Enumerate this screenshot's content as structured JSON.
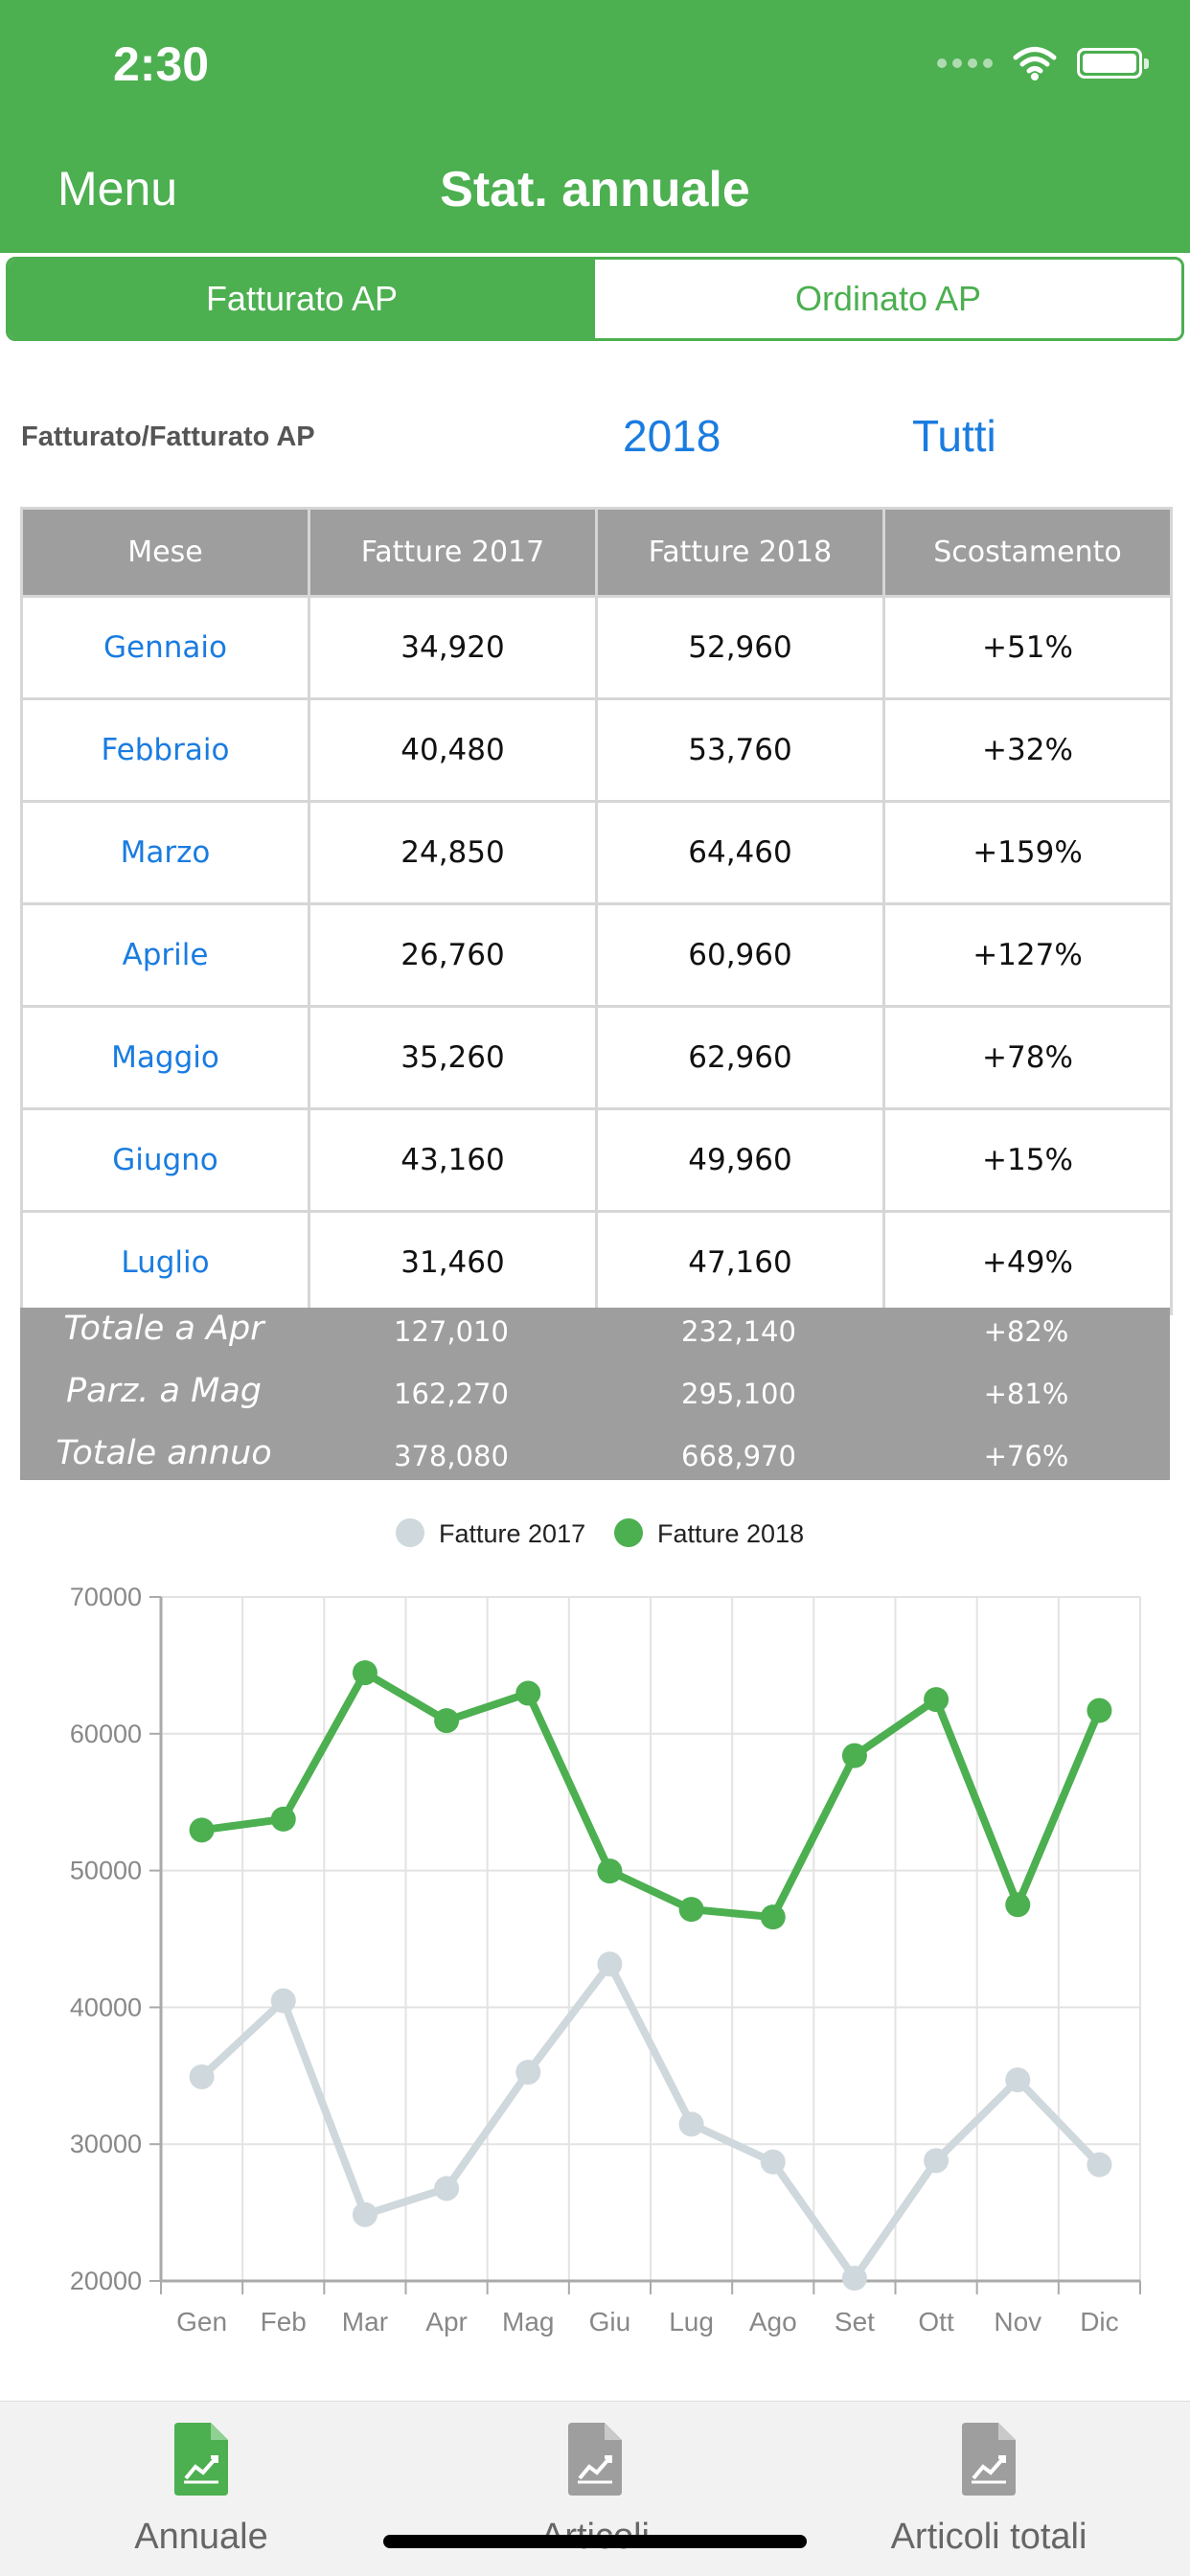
{
  "status_bar": {
    "time": "2:30"
  },
  "nav": {
    "menu_label": "Menu",
    "title": "Stat. annuale"
  },
  "segmented": {
    "items": [
      "Fatturato AP",
      "Ordinato AP"
    ],
    "selected": 0
  },
  "filters": {
    "label": "Fatturato/Fatturato AP",
    "year": "2018",
    "scope": "Tutti"
  },
  "table": {
    "headers": [
      "Mese",
      "Fatture 2017",
      "Fatture 2018",
      "Scostamento"
    ],
    "rows": [
      [
        "Gennaio",
        "34,920",
        "52,960",
        "+51%"
      ],
      [
        "Febbraio",
        "40,480",
        "53,760",
        "+32%"
      ],
      [
        "Marzo",
        "24,850",
        "64,460",
        "+159%"
      ],
      [
        "Aprile",
        "26,760",
        "60,960",
        "+127%"
      ],
      [
        "Maggio",
        "35,260",
        "62,960",
        "+78%"
      ],
      [
        "Giugno",
        "43,160",
        "49,960",
        "+15%"
      ],
      [
        "Luglio",
        "31,460",
        "47,160",
        "+49%"
      ]
    ]
  },
  "totals": [
    [
      "Totale a Apr",
      "127,010",
      "232,140",
      "+82%"
    ],
    [
      "Parz. a Mag",
      "162,270",
      "295,100",
      "+81%"
    ],
    [
      "Totale annuo",
      "378,080",
      "668,970",
      "+76%"
    ]
  ],
  "chart_data": {
    "type": "line",
    "categories": [
      "Gen",
      "Feb",
      "Mar",
      "Apr",
      "Mag",
      "Giu",
      "Lug",
      "Ago",
      "Set",
      "Ott",
      "Nov",
      "Dic"
    ],
    "series": [
      {
        "name": "Fatture 2017",
        "color": "#cfd8dc",
        "values": [
          34920,
          40480,
          24850,
          26760,
          35260,
          43160,
          31460,
          28700,
          20200,
          28800,
          34700,
          28500
        ]
      },
      {
        "name": "Fatture 2018",
        "color": "#4caf50",
        "values": [
          52960,
          53760,
          64460,
          60960,
          62960,
          49960,
          47160,
          46600,
          58400,
          62500,
          47500,
          61700
        ]
      }
    ],
    "yticks": [
      "70000",
      "60000",
      "50000",
      "40000",
      "30000",
      "20000"
    ],
    "ylim": [
      20000,
      70000
    ],
    "grid": true,
    "legend_position": "top-center"
  },
  "tabbar": {
    "items": [
      "Annuale",
      "Articoli",
      "Articoli totali"
    ],
    "active": 0
  }
}
